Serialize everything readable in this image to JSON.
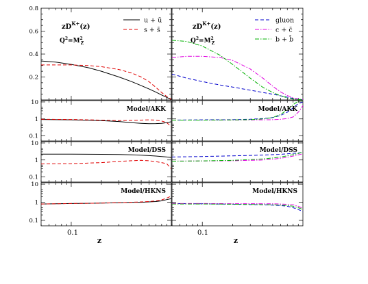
{
  "figure": {
    "xlabel": "z",
    "x_tick_label": "0.1",
    "colors": {
      "u_ubar": "#000000",
      "s_sbar": "#e00000",
      "gluon": "#0000cc",
      "c_cbar": "#e000e0",
      "b_bbar": "#00b000"
    }
  },
  "chart_data": [
    {
      "panel": "left-top",
      "type": "line",
      "xscale": "log",
      "xlim": [
        0.05,
        1.0
      ],
      "ylim": [
        0,
        0.8
      ],
      "yticks": [
        "0.2",
        "0.4",
        "0.6",
        "0.8"
      ],
      "annotation_lines": [
        "zD^{K+}(z)",
        "Q^2=M_Z^2"
      ],
      "legend_position": "top-right",
      "legend": [
        "u + ū",
        "s + s̄"
      ],
      "series": [
        {
          "name": "u + ū",
          "key": "u_ubar",
          "style": "solid",
          "x": [
            0.05,
            0.07,
            0.1,
            0.15,
            0.2,
            0.3,
            0.4,
            0.5,
            0.6,
            0.7,
            0.8,
            0.9,
            1.0
          ],
          "y": [
            0.34,
            0.33,
            0.31,
            0.28,
            0.25,
            0.2,
            0.16,
            0.125,
            0.095,
            0.068,
            0.043,
            0.022,
            0.003
          ]
        },
        {
          "name": "s + s̄",
          "key": "s_sbar",
          "style": "dashed",
          "x": [
            0.05,
            0.07,
            0.1,
            0.15,
            0.2,
            0.3,
            0.4,
            0.5,
            0.6,
            0.7,
            0.8,
            0.9,
            1.0
          ],
          "y": [
            0.305,
            0.305,
            0.305,
            0.3,
            0.29,
            0.265,
            0.235,
            0.2,
            0.158,
            0.11,
            0.065,
            0.03,
            0.005
          ]
        }
      ]
    },
    {
      "panel": "right-top",
      "type": "line",
      "xscale": "log",
      "xlim": [
        0.05,
        1.0
      ],
      "ylim": [
        0,
        0.8
      ],
      "annotation_lines": [
        "zD^{K+}(z)",
        "Q^2=M_Z^2"
      ],
      "legend_position": "top-right",
      "legend": [
        "gluon",
        "c + c̄",
        "b + b̄"
      ],
      "series": [
        {
          "name": "gluon",
          "key": "gluon",
          "style": "dashed",
          "x": [
            0.05,
            0.07,
            0.1,
            0.15,
            0.2,
            0.3,
            0.4,
            0.5,
            0.6,
            0.7,
            0.8,
            0.9,
            1.0
          ],
          "y": [
            0.225,
            0.19,
            0.16,
            0.13,
            0.112,
            0.085,
            0.065,
            0.05,
            0.036,
            0.024,
            0.014,
            0.006,
            0.002
          ]
        },
        {
          "name": "c + c̄",
          "key": "c_cbar",
          "style": "dashdot",
          "x": [
            0.05,
            0.07,
            0.1,
            0.15,
            0.2,
            0.3,
            0.4,
            0.5,
            0.6,
            0.7,
            0.8,
            0.9,
            1.0
          ],
          "y": [
            0.37,
            0.38,
            0.38,
            0.37,
            0.345,
            0.27,
            0.19,
            0.12,
            0.07,
            0.038,
            0.018,
            0.008,
            0.002
          ]
        },
        {
          "name": "b + b̄",
          "key": "b_bbar",
          "style": "dashdot",
          "x": [
            0.05,
            0.07,
            0.1,
            0.15,
            0.2,
            0.3,
            0.4,
            0.5,
            0.6,
            0.7,
            0.8,
            0.9,
            1.0
          ],
          "y": [
            0.52,
            0.51,
            0.47,
            0.39,
            0.31,
            0.19,
            0.11,
            0.065,
            0.035,
            0.018,
            0.008,
            0.004,
            0.001
          ]
        }
      ]
    },
    {
      "panel": "left-ratio-1",
      "type": "line",
      "xscale": "log",
      "yscale": "log",
      "xlim": [
        0.05,
        1.0
      ],
      "ylim": [
        0.05,
        12
      ],
      "yticks": [
        "0.1",
        "1",
        "10"
      ],
      "label": "Model/AKK",
      "series": [
        {
          "name": "u + ū",
          "key": "u_ubar",
          "style": "solid",
          "x": [
            0.05,
            0.1,
            0.2,
            0.3,
            0.4,
            0.5,
            0.6,
            0.7,
            0.8,
            0.9,
            1.0
          ],
          "y": [
            0.92,
            0.88,
            0.8,
            0.7,
            0.6,
            0.55,
            0.52,
            0.53,
            0.55,
            0.6,
            0.68
          ]
        },
        {
          "name": "s + s̄",
          "key": "s_sbar",
          "style": "dashed",
          "x": [
            0.05,
            0.1,
            0.2,
            0.3,
            0.4,
            0.5,
            0.6,
            0.7,
            0.8,
            0.9,
            1.0
          ],
          "y": [
            0.95,
            0.92,
            0.85,
            0.8,
            0.82,
            0.85,
            0.88,
            0.85,
            0.75,
            0.6,
            0.35
          ]
        }
      ]
    },
    {
      "panel": "right-ratio-1",
      "type": "line",
      "xscale": "log",
      "yscale": "log",
      "xlim": [
        0.05,
        1.0
      ],
      "ylim": [
        0.05,
        12
      ],
      "label": "Model/AKK",
      "series": [
        {
          "name": "gluon",
          "key": "gluon",
          "style": "dashed",
          "x": [
            0.05,
            0.1,
            0.2,
            0.3,
            0.4,
            0.5,
            0.6,
            0.7,
            0.8,
            0.9,
            1.0
          ],
          "y": [
            0.85,
            0.88,
            0.9,
            0.95,
            1.05,
            1.2,
            1.6,
            2.5,
            4.5,
            8.0,
            10.0
          ]
        },
        {
          "name": "c + c̄",
          "key": "c_cbar",
          "style": "dashdot",
          "x": [
            0.05,
            0.1,
            0.2,
            0.3,
            0.4,
            0.5,
            0.6,
            0.7,
            0.8,
            0.9,
            1.0
          ],
          "y": [
            0.85,
            0.85,
            0.86,
            0.87,
            0.88,
            0.9,
            0.95,
            1.05,
            1.3,
            2.5,
            6.0
          ]
        },
        {
          "name": "b + b̄",
          "key": "b_bbar",
          "style": "dashdot",
          "x": [
            0.05,
            0.1,
            0.2,
            0.3,
            0.4,
            0.5,
            0.6,
            0.7,
            0.8,
            0.9,
            1.0
          ],
          "y": [
            0.85,
            0.85,
            0.87,
            0.9,
            1.0,
            1.2,
            1.8,
            3.5,
            7.0,
            11.0,
            12.0
          ]
        }
      ]
    },
    {
      "panel": "left-ratio-2",
      "type": "line",
      "xscale": "log",
      "yscale": "log",
      "xlim": [
        0.05,
        1.0
      ],
      "ylim": [
        0.05,
        12
      ],
      "yticks": [
        "0.1",
        "1",
        "10"
      ],
      "label": "Model/DSS",
      "series": [
        {
          "name": "u + ū",
          "key": "u_ubar",
          "style": "solid",
          "x": [
            0.05,
            0.1,
            0.2,
            0.3,
            0.4,
            0.5,
            0.6,
            0.7,
            0.8,
            0.9,
            1.0
          ],
          "y": [
            2.2,
            2.2,
            2.15,
            2.1,
            2.0,
            1.9,
            1.8,
            1.7,
            1.6,
            1.5,
            1.4
          ]
        },
        {
          "name": "s + s̄",
          "key": "s_sbar",
          "style": "dashed",
          "x": [
            0.05,
            0.1,
            0.2,
            0.3,
            0.4,
            0.5,
            0.6,
            0.7,
            0.8,
            0.9,
            1.0
          ],
          "y": [
            0.58,
            0.6,
            0.7,
            0.82,
            0.9,
            0.95,
            0.9,
            0.8,
            0.7,
            0.6,
            0.3
          ]
        }
      ]
    },
    {
      "panel": "right-ratio-2",
      "type": "line",
      "xscale": "log",
      "yscale": "log",
      "xlim": [
        0.05,
        1.0
      ],
      "ylim": [
        0.05,
        12
      ],
      "label": "Model/DSS",
      "series": [
        {
          "name": "gluon",
          "key": "gluon",
          "style": "dashed",
          "x": [
            0.05,
            0.1,
            0.2,
            0.3,
            0.4,
            0.5,
            0.6,
            0.7,
            0.8,
            0.9,
            1.0
          ],
          "y": [
            1.5,
            1.6,
            1.75,
            1.85,
            1.95,
            2.05,
            2.15,
            2.3,
            2.45,
            2.6,
            2.8
          ]
        },
        {
          "name": "c + c̄",
          "key": "c_cbar",
          "style": "dashdot",
          "x": [
            0.05,
            0.1,
            0.2,
            0.3,
            0.4,
            0.5,
            0.6,
            0.7,
            0.8,
            0.9,
            1.0
          ],
          "y": [
            0.85,
            0.87,
            0.9,
            0.95,
            1.0,
            1.1,
            1.25,
            1.45,
            1.7,
            2.0,
            2.3
          ]
        },
        {
          "name": "b + b̄",
          "key": "b_bbar",
          "style": "dashdot",
          "x": [
            0.05,
            0.1,
            0.2,
            0.3,
            0.4,
            0.5,
            0.6,
            0.7,
            0.8,
            0.9,
            1.0
          ],
          "y": [
            0.85,
            0.88,
            0.95,
            1.05,
            1.15,
            1.3,
            1.5,
            1.75,
            2.05,
            2.4,
            2.9
          ]
        }
      ]
    },
    {
      "panel": "left-ratio-3",
      "type": "line",
      "xscale": "log",
      "yscale": "log",
      "xlim": [
        0.05,
        1.0
      ],
      "ylim": [
        0.05,
        12
      ],
      "yticks": [
        "0.1",
        "1",
        "10"
      ],
      "label": "Model/HKNS",
      "series": [
        {
          "name": "u + ū",
          "key": "u_ubar",
          "style": "solid",
          "x": [
            0.05,
            0.1,
            0.2,
            0.3,
            0.4,
            0.5,
            0.6,
            0.7,
            0.8,
            0.9,
            1.0
          ],
          "y": [
            0.8,
            0.85,
            0.9,
            0.95,
            1.0,
            1.0,
            1.05,
            1.1,
            1.2,
            1.4,
            1.6
          ]
        },
        {
          "name": "s + s̄",
          "key": "s_sbar",
          "style": "dashed",
          "x": [
            0.05,
            0.1,
            0.2,
            0.3,
            0.4,
            0.5,
            0.6,
            0.7,
            0.8,
            0.9,
            1.0
          ],
          "y": [
            0.8,
            0.85,
            0.9,
            0.95,
            1.0,
            1.05,
            1.1,
            1.2,
            1.35,
            1.7,
            2.2
          ]
        }
      ]
    },
    {
      "panel": "right-ratio-3",
      "type": "line",
      "xscale": "log",
      "yscale": "log",
      "xlim": [
        0.05,
        1.0
      ],
      "ylim": [
        0.05,
        12
      ],
      "label": "Model/HKNS",
      "series": [
        {
          "name": "gluon",
          "key": "gluon",
          "style": "dashed",
          "x": [
            0.05,
            0.1,
            0.2,
            0.3,
            0.4,
            0.5,
            0.6,
            0.7,
            0.8,
            0.9,
            1.0
          ],
          "y": [
            0.85,
            0.82,
            0.78,
            0.75,
            0.72,
            0.7,
            0.66,
            0.6,
            0.5,
            0.4,
            0.3
          ]
        },
        {
          "name": "c + c̄",
          "key": "c_cbar",
          "style": "dashdot",
          "x": [
            0.05,
            0.1,
            0.2,
            0.3,
            0.4,
            0.5,
            0.6,
            0.7,
            0.8,
            0.9,
            1.0
          ],
          "y": [
            0.85,
            0.85,
            0.84,
            0.84,
            0.83,
            0.82,
            0.8,
            0.77,
            0.72,
            0.6,
            0.45
          ]
        },
        {
          "name": "b + b̄",
          "key": "b_bbar",
          "style": "dashdot",
          "x": [
            0.05,
            0.1,
            0.2,
            0.3,
            0.4,
            0.5,
            0.6,
            0.7,
            0.8,
            0.9,
            1.0
          ],
          "y": [
            0.8,
            0.8,
            0.78,
            0.76,
            0.74,
            0.72,
            0.7,
            0.67,
            0.6,
            0.5,
            0.4
          ]
        }
      ]
    }
  ]
}
